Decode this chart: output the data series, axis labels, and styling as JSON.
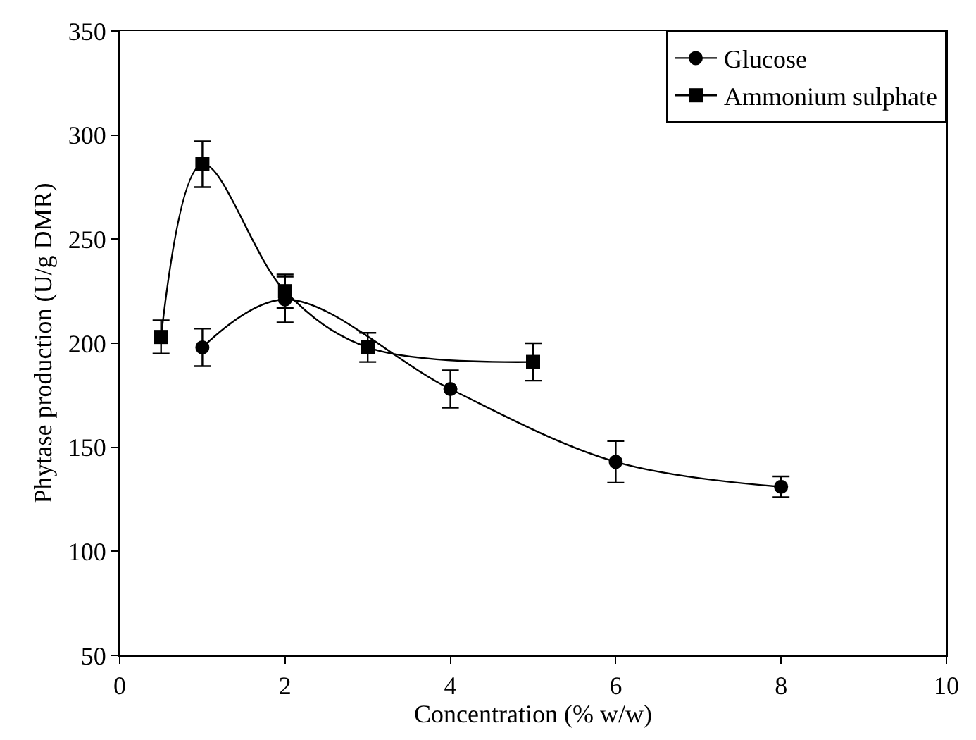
{
  "chart_data": {
    "type": "line",
    "xlabel": "Concentration (% w/w)",
    "ylabel": "Phytase production (U/g DMR)",
    "xlim": [
      0,
      10
    ],
    "xticks": [
      0,
      2,
      4,
      6,
      8,
      10
    ],
    "ylim": [
      50,
      350
    ],
    "yticks": [
      50,
      100,
      150,
      200,
      250,
      300,
      350
    ],
    "grid": false,
    "legend": "top right",
    "line_style": "solid",
    "series": [
      {
        "name": "Glucose",
        "color": "#000000",
        "marker": "circle",
        "x": [
          1,
          2,
          4,
          6,
          8
        ],
        "values": [
          198,
          221,
          178,
          143,
          131
        ],
        "errors": [
          9,
          11,
          9,
          10,
          5
        ]
      },
      {
        "name": "Ammonium sulphate",
        "color": "#000000",
        "marker": "square",
        "x": [
          0.5,
          1,
          2,
          3,
          5
        ],
        "values": [
          203,
          286,
          225,
          198,
          191
        ],
        "errors": [
          8,
          11,
          8,
          7,
          9
        ]
      }
    ]
  }
}
